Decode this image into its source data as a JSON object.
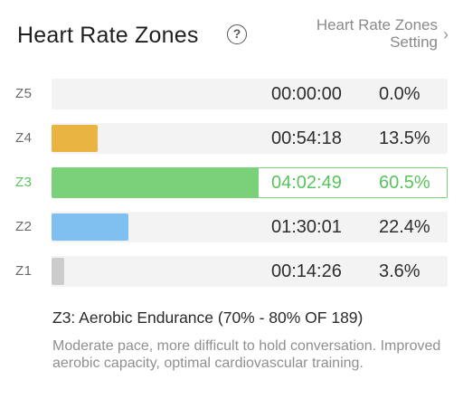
{
  "header": {
    "title": "Heart Rate Zones",
    "help_icon": "question-circle-icon",
    "setting_line1": "Heart Rate Zones",
    "setting_line2": "Setting",
    "chevron_icon": "chevron-right-icon"
  },
  "colors": {
    "z4": "#e9b441",
    "z3": "#7ad17a",
    "z2": "#80c0f0",
    "z1": "#cccccc",
    "active_text": "#59c45e"
  },
  "zones": [
    {
      "label": "Z5",
      "time": "00:00:00",
      "percent": "0.0%",
      "fraction": 0.0
    },
    {
      "label": "Z4",
      "time": "00:54:18",
      "percent": "13.5%",
      "fraction": 0.135
    },
    {
      "label": "Z3",
      "time": "04:02:49",
      "percent": "60.5%",
      "fraction": 0.605
    },
    {
      "label": "Z2",
      "time": "01:30:01",
      "percent": "22.4%",
      "fraction": 0.224
    },
    {
      "label": "Z1",
      "time": "00:14:26",
      "percent": "3.6%",
      "fraction": 0.036
    }
  ],
  "description": {
    "title": "Z3: Aerobic Endurance (70% - 80% OF 189)",
    "body": "Moderate pace, more difficult to hold conversation. Improved aerobic capacity, optimal cardiovascular training."
  }
}
